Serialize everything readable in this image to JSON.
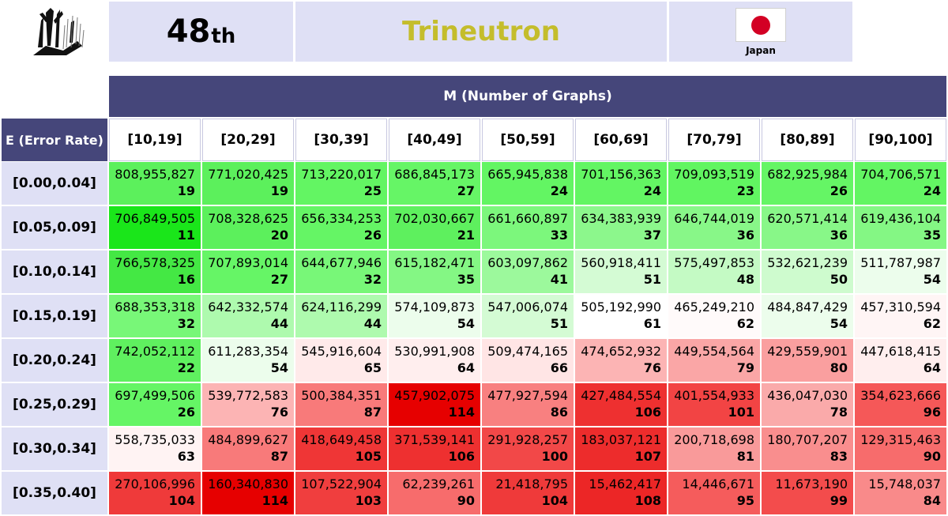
{
  "header": {
    "rank": "48",
    "rank_suffix": "th",
    "team": "Trineutron",
    "country": "Japan",
    "colors": {
      "header_bg": "#dfe0f5",
      "dark_bg": "#45467a",
      "team_text": "#c4bd2c",
      "flag_red": "#d30024"
    }
  },
  "table": {
    "m_header": "M (Number of Graphs)",
    "e_header": "E (Error Rate)",
    "columns": [
      "[10,19]",
      "[20,29]",
      "[30,39]",
      "[40,49]",
      "[50,59]",
      "[60,69]",
      "[70,79]",
      "[80,89]",
      "[90,100]"
    ],
    "rows": [
      {
        "label": "[0.00,0.04]",
        "cells": [
          {
            "score": "808,955,827",
            "rank": "19",
            "color": "#5cf05c"
          },
          {
            "score": "771,020,425",
            "rank": "19",
            "color": "#5cf05c"
          },
          {
            "score": "713,220,017",
            "rank": "25",
            "color": "#63f563"
          },
          {
            "score": "686,845,173",
            "rank": "27",
            "color": "#66f566"
          },
          {
            "score": "665,945,838",
            "rank": "24",
            "color": "#63f563"
          },
          {
            "score": "701,156,363",
            "rank": "24",
            "color": "#63f563"
          },
          {
            "score": "709,093,519",
            "rank": "23",
            "color": "#61f561"
          },
          {
            "score": "682,925,984",
            "rank": "26",
            "color": "#65f565"
          },
          {
            "score": "704,706,571",
            "rank": "24",
            "color": "#63f563"
          }
        ]
      },
      {
        "label": "[0.05,0.09]",
        "cells": [
          {
            "score": "706,849,505",
            "rank": "11",
            "color": "#1ae61a"
          },
          {
            "score": "708,328,625",
            "rank": "20",
            "color": "#5cf05c"
          },
          {
            "score": "656,334,253",
            "rank": "26",
            "color": "#65f565"
          },
          {
            "score": "702,030,667",
            "rank": "21",
            "color": "#5ef05e"
          },
          {
            "score": "661,660,897",
            "rank": "33",
            "color": "#7cf77c"
          },
          {
            "score": "634,383,939",
            "rank": "37",
            "color": "#8cf78c"
          },
          {
            "score": "646,744,019",
            "rank": "36",
            "color": "#88f788"
          },
          {
            "score": "620,571,414",
            "rank": "36",
            "color": "#88f788"
          },
          {
            "score": "619,436,104",
            "rank": "35",
            "color": "#84f784"
          }
        ]
      },
      {
        "label": "[0.10,0.14]",
        "cells": [
          {
            "score": "766,578,325",
            "rank": "16",
            "color": "#44e844"
          },
          {
            "score": "707,893,014",
            "rank": "27",
            "color": "#66f566"
          },
          {
            "score": "644,677,946",
            "rank": "32",
            "color": "#78f778"
          },
          {
            "score": "615,182,471",
            "rank": "35",
            "color": "#84f784"
          },
          {
            "score": "603,097,862",
            "rank": "41",
            "color": "#9cf99c"
          },
          {
            "score": "560,918,411",
            "rank": "51",
            "color": "#d4fbd4"
          },
          {
            "score": "575,497,853",
            "rank": "48",
            "color": "#c4fac4"
          },
          {
            "score": "532,621,239",
            "rank": "50",
            "color": "#cefbce"
          },
          {
            "score": "511,787,987",
            "rank": "54",
            "color": "#ecfdec"
          }
        ]
      },
      {
        "label": "[0.15,0.19]",
        "cells": [
          {
            "score": "688,353,318",
            "rank": "32",
            "color": "#78f778"
          },
          {
            "score": "642,332,574",
            "rank": "44",
            "color": "#aefaae"
          },
          {
            "score": "624,116,299",
            "rank": "44",
            "color": "#aefaae"
          },
          {
            "score": "574,109,873",
            "rank": "54",
            "color": "#ecfdec"
          },
          {
            "score": "547,006,074",
            "rank": "51",
            "color": "#d4fbd4"
          },
          {
            "score": "505,192,990",
            "rank": "61",
            "color": "#ffffff"
          },
          {
            "score": "465,249,210",
            "rank": "62",
            "color": "#fffafa"
          },
          {
            "score": "484,847,429",
            "rank": "54",
            "color": "#ecfdec"
          },
          {
            "score": "457,310,594",
            "rank": "62",
            "color": "#fff5f5"
          }
        ]
      },
      {
        "label": "[0.20,0.24]",
        "cells": [
          {
            "score": "742,052,112",
            "rank": "22",
            "color": "#5ff05f"
          },
          {
            "score": "611,283,354",
            "rank": "54",
            "color": "#ecfdec"
          },
          {
            "score": "545,916,604",
            "rank": "65",
            "color": "#ffeaea"
          },
          {
            "score": "530,991,908",
            "rank": "64",
            "color": "#ffeeee"
          },
          {
            "score": "509,474,165",
            "rank": "66",
            "color": "#ffe5e5"
          },
          {
            "score": "474,652,932",
            "rank": "76",
            "color": "#fcb4b4"
          },
          {
            "score": "449,554,564",
            "rank": "79",
            "color": "#faa6a6"
          },
          {
            "score": "429,559,901",
            "rank": "80",
            "color": "#fa9f9f"
          },
          {
            "score": "447,618,415",
            "rank": "64",
            "color": "#ffeeee"
          }
        ]
      },
      {
        "label": "[0.25,0.29]",
        "cells": [
          {
            "score": "697,499,506",
            "rank": "26",
            "color": "#65f565"
          },
          {
            "score": "539,772,583",
            "rank": "76",
            "color": "#fcb4b4"
          },
          {
            "score": "500,384,351",
            "rank": "87",
            "color": "#f87a7a"
          },
          {
            "score": "457,902,075",
            "rank": "114",
            "color": "#e60000"
          },
          {
            "score": "477,927,594",
            "rank": "86",
            "color": "#f88080"
          },
          {
            "score": "427,484,554",
            "rank": "106",
            "color": "#ee3030"
          },
          {
            "score": "401,554,933",
            "rank": "101",
            "color": "#f24444"
          },
          {
            "score": "436,047,030",
            "rank": "78",
            "color": "#faaaaa"
          },
          {
            "score": "354,623,666",
            "rank": "96",
            "color": "#f55858"
          }
        ]
      },
      {
        "label": "[0.30,0.34]",
        "cells": [
          {
            "score": "558,735,033",
            "rank": "63",
            "color": "#fff3f3"
          },
          {
            "score": "484,899,627",
            "rank": "87",
            "color": "#f87a7a"
          },
          {
            "score": "418,649,458",
            "rank": "105",
            "color": "#ef3636"
          },
          {
            "score": "371,539,141",
            "rank": "106",
            "color": "#ee3030"
          },
          {
            "score": "291,928,257",
            "rank": "100",
            "color": "#f24848"
          },
          {
            "score": "183,037,121",
            "rank": "107",
            "color": "#ed2c2c"
          },
          {
            "score": "200,718,698",
            "rank": "81",
            "color": "#f99a9a"
          },
          {
            "score": "180,707,207",
            "rank": "83",
            "color": "#f98e8e"
          },
          {
            "score": "129,315,463",
            "rank": "90",
            "color": "#f76c6c"
          }
        ]
      },
      {
        "label": "[0.35,0.40]",
        "cells": [
          {
            "score": "270,106,996",
            "rank": "104",
            "color": "#ef3a3a"
          },
          {
            "score": "160,340,830",
            "rank": "114",
            "color": "#e60000"
          },
          {
            "score": "107,522,904",
            "rank": "103",
            "color": "#f03e3e"
          },
          {
            "score": "62,239,261",
            "rank": "90",
            "color": "#f76c6c"
          },
          {
            "score": "21,418,795",
            "rank": "104",
            "color": "#ef3a3a"
          },
          {
            "score": "15,462,417",
            "rank": "108",
            "color": "#ec2626"
          },
          {
            "score": "14,446,671",
            "rank": "95",
            "color": "#f55c5c"
          },
          {
            "score": "11,673,190",
            "rank": "99",
            "color": "#f34c4c"
          },
          {
            "score": "15,748,037",
            "rank": "84",
            "color": "#f98a8a"
          }
        ]
      }
    ]
  }
}
